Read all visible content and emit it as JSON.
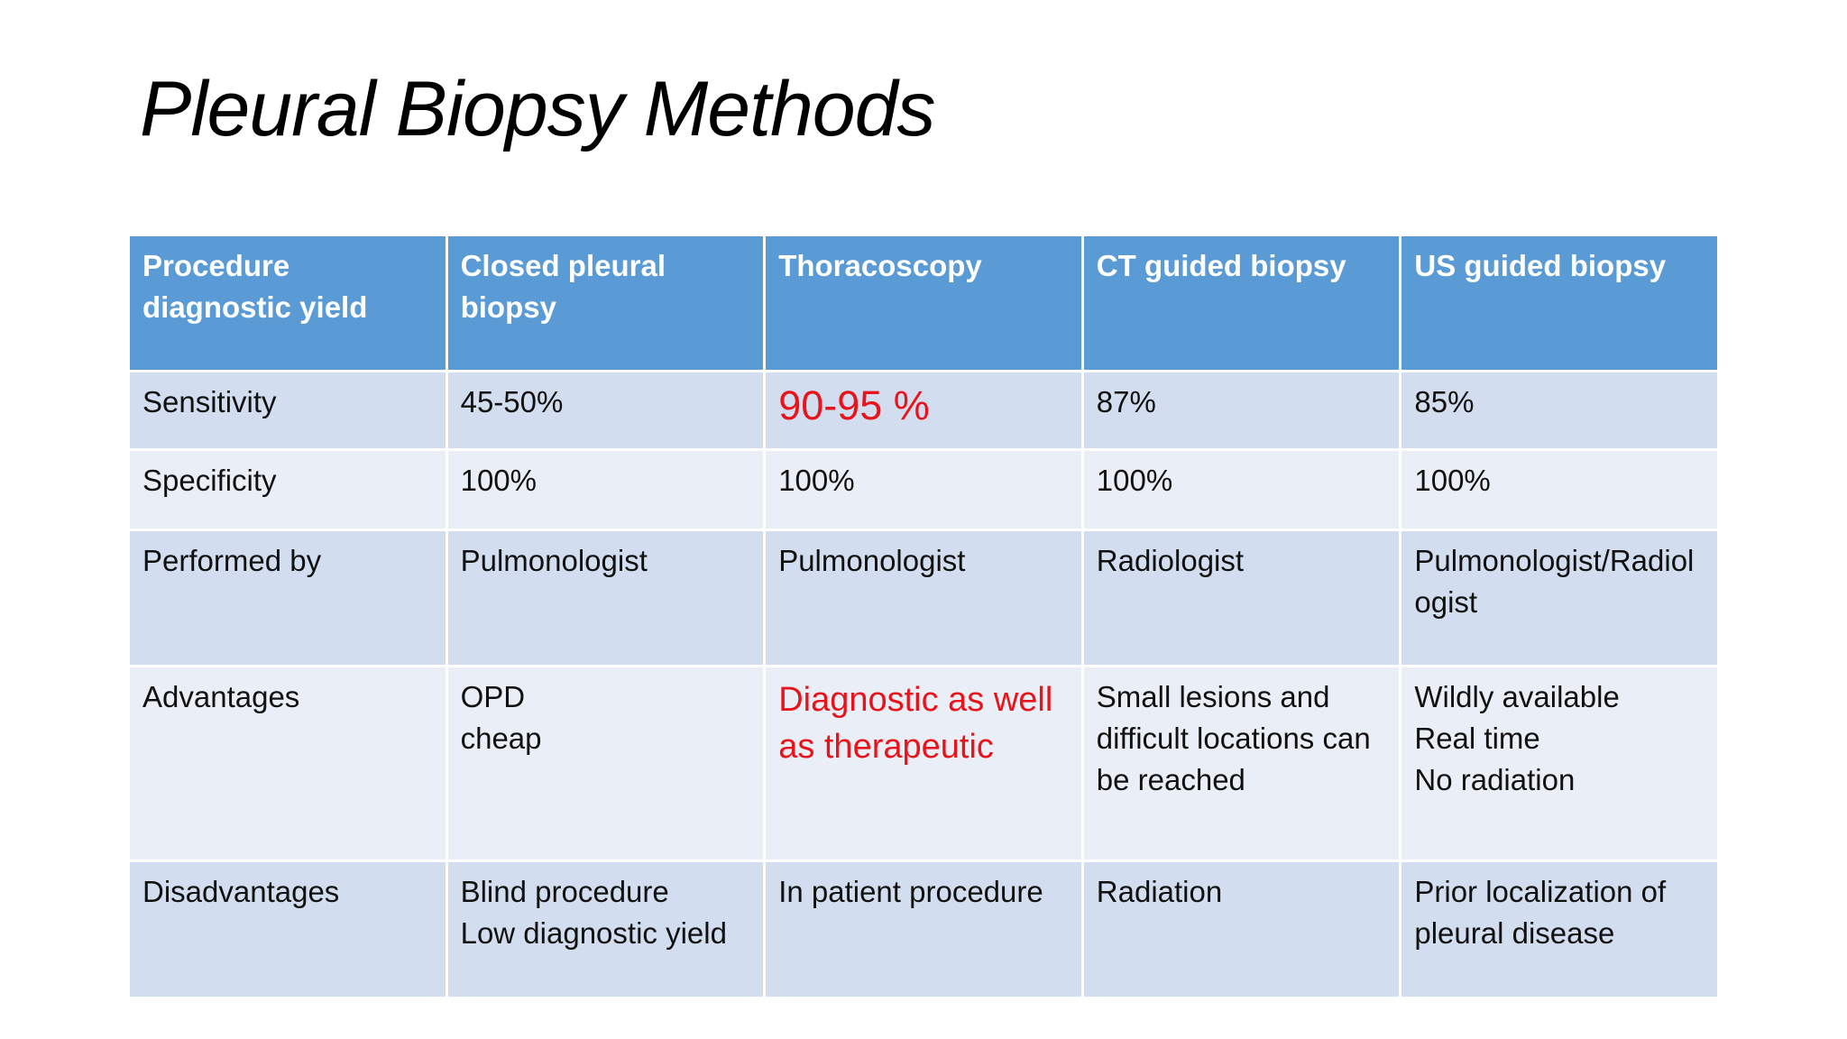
{
  "title": "Pleural Biopsy Methods",
  "table": {
    "header": [
      "Procedure diagnostic yield",
      "Closed pleural biopsy",
      "Thoracoscopy",
      "CT guided biopsy",
      "US guided biopsy"
    ],
    "rows": [
      [
        "Sensitivity",
        "45-50%",
        "90-95 %",
        "87%",
        "85%"
      ],
      [
        "Specificity",
        "100%",
        "100%",
        "100%",
        "100%"
      ],
      [
        "Performed by",
        "Pulmonologist",
        "Pulmonologist",
        "Radiologist",
        "Pulmonologist/Radiologist"
      ],
      [
        "Advantages",
        "OPD\ncheap",
        "Diagnostic as well as therapeutic",
        "Small lesions and difficult locations can be reached",
        "Wildly available\nReal time\nNo radiation"
      ],
      [
        "Disadvantages",
        "Blind procedure\nLow diagnostic yield",
        "In patient procedure",
        "Radiation",
        "Prior localization of pleural disease"
      ]
    ]
  }
}
